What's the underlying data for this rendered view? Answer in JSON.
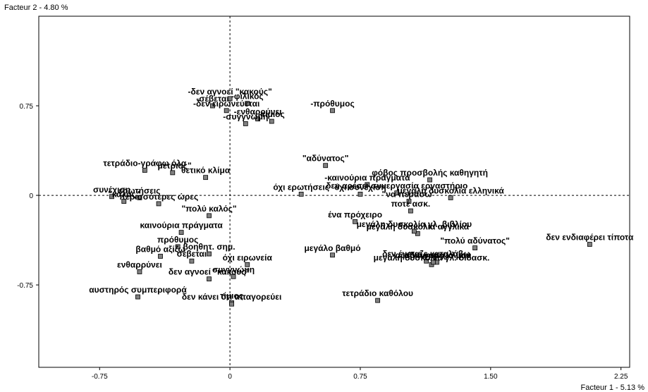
{
  "chart_data": {
    "type": "scatter",
    "xlabel": "Facteur 1  -  5.13 %",
    "ylabel": "Facteur 2  -  4.80 %",
    "xlim": [
      -1.1,
      2.3
    ],
    "ylim": [
      -1.44,
      1.5
    ],
    "x_ticks": [
      -0.75,
      0,
      0.75,
      1.5,
      2.25
    ],
    "x_tick_labels": [
      "-0.75",
      "0",
      "0.75",
      "1.50",
      "2.25"
    ],
    "y_ticks": [
      -0.75,
      0,
      0.75
    ],
    "y_tick_labels": [
      "-0.75",
      "0",
      "0.75"
    ],
    "grid": false,
    "reference_lines": [
      0,
      0
    ],
    "marker_color": "#808080",
    "points": [
      {
        "label": "-δεν αγνοεί \"κακούς\"",
        "x": 0.0,
        "y": 0.81
      },
      {
        "label": "-σέβεται",
        "x": -0.1,
        "y": 0.75
      },
      {
        "label": "-φιλικός",
        "x": 0.1,
        "y": 0.77
      },
      {
        "label": "-δεν ειρωνεύεται",
        "x": -0.02,
        "y": 0.71
      },
      {
        "label": "-πρόθυμος",
        "x": 0.59,
        "y": 0.71
      },
      {
        "label": "-ενθαρρύνει",
        "x": 0.16,
        "y": 0.64
      },
      {
        "label": "-συγγνώμη",
        "x": 0.09,
        "y": 0.6
      },
      {
        "label": "-τίμιος",
        "x": 0.24,
        "y": 0.62
      },
      {
        "label": "τετράδιο-γράφω όλα",
        "x": -0.49,
        "y": 0.21
      },
      {
        "label": "\"μέτριος\"",
        "x": -0.33,
        "y": 0.19
      },
      {
        "label": "θετικό κλίμα",
        "x": -0.14,
        "y": 0.15
      },
      {
        "label": "\"αδύνατος\"",
        "x": 0.55,
        "y": 0.25
      },
      {
        "label": "φόβος προσβολής καθηγητή",
        "x": 1.15,
        "y": 0.13
      },
      {
        "label": "-καινούρια πράγματα",
        "x": 0.79,
        "y": 0.09
      },
      {
        "label": "όχι ερωτήσεις",
        "x": 0.41,
        "y": 0.01
      },
      {
        "label": "δεν αρέσει συνεργασία εργαστήριο",
        "x": 0.96,
        "y": 0.02
      },
      {
        "label": "συνέχιση",
        "x": -0.68,
        "y": -0.01
      },
      {
        "label": "ερωτήσεις",
        "x": -0.52,
        "y": -0.02
      },
      {
        "label": "\"καλός\"",
        "x": -0.61,
        "y": -0.05
      },
      {
        "label": "όχι συνέχιση",
        "x": 0.75,
        "y": 0.01
      },
      {
        "label": "\"να περάσω\"",
        "x": 1.03,
        "y": -0.05
      },
      {
        "label": "μεγάλη δυσκολία ελληνικά",
        "x": 1.27,
        "y": -0.02
      },
      {
        "label": "περισσότερες ώρες",
        "x": -0.41,
        "y": -0.07
      },
      {
        "label": "\"πολύ καλός\"",
        "x": -0.12,
        "y": -0.17
      },
      {
        "label": "ένα πρόχειρο",
        "x": 0.72,
        "y": -0.22
      },
      {
        "label": "ποτέ ασκ.",
        "x": 1.04,
        "y": -0.13
      },
      {
        "label": "μεγάλη δυσκολία αγγλικά",
        "x": 1.08,
        "y": -0.32
      },
      {
        "label": "καινούρια πράγματα",
        "x": -0.28,
        "y": -0.31
      },
      {
        "label": "πρόθυμος",
        "x": -0.3,
        "y": -0.43
      },
      {
        "label": "μεγάλη δυσκολία γλ. βιβλίου",
        "x": 1.06,
        "y": -0.3
      },
      {
        "label": "\"πολύ αδύνατος\"",
        "x": 1.41,
        "y": -0.44
      },
      {
        "label": "δεν ενδιαφέρει τίποτα",
        "x": 2.07,
        "y": -0.41
      },
      {
        "label": "βοηθητ. σημ.",
        "x": -0.12,
        "y": -0.49
      },
      {
        "label": "αδιάφορο κλίμα",
        "x": 1.19,
        "y": -0.56
      },
      {
        "label": "βαθμό αξίζω",
        "x": -0.4,
        "y": -0.51
      },
      {
        "label": "σέβεται",
        "x": -0.22,
        "y": -0.55
      },
      {
        "label": "όχι ειρωνεία",
        "x": 0.1,
        "y": -0.58
      },
      {
        "label": "μεγάλο βαθμό",
        "x": 0.59,
        "y": -0.5
      },
      {
        "label": "δεν ένοιαζε καταλάβω",
        "x": 1.13,
        "y": -0.55
      },
      {
        "label": "ενθαρρύνει",
        "x": -0.52,
        "y": -0.64
      },
      {
        "label": "μεγάλη δυσκολία γλ. διδασκ.",
        "x": 1.16,
        "y": -0.58
      },
      {
        "label": "δεν αγνοεί \"κακούς\"",
        "x": -0.12,
        "y": -0.7
      },
      {
        "label": "συγγνώμη",
        "x": 0.02,
        "y": -0.68
      },
      {
        "label": "αφήνει ησυχία μου",
        "x": 1.17,
        "y": -0.56
      },
      {
        "label": "αυστηρός συμπεριφορά",
        "x": -0.53,
        "y": -0.85
      },
      {
        "label": "τίμιος",
        "x": 0.01,
        "y": -0.9
      },
      {
        "label": "τετράδιο καθόλου",
        "x": 0.85,
        "y": -0.88
      },
      {
        "label": "δεν κάνει ότι απαγορεύει",
        "x": 0.01,
        "y": -0.91
      }
    ]
  }
}
